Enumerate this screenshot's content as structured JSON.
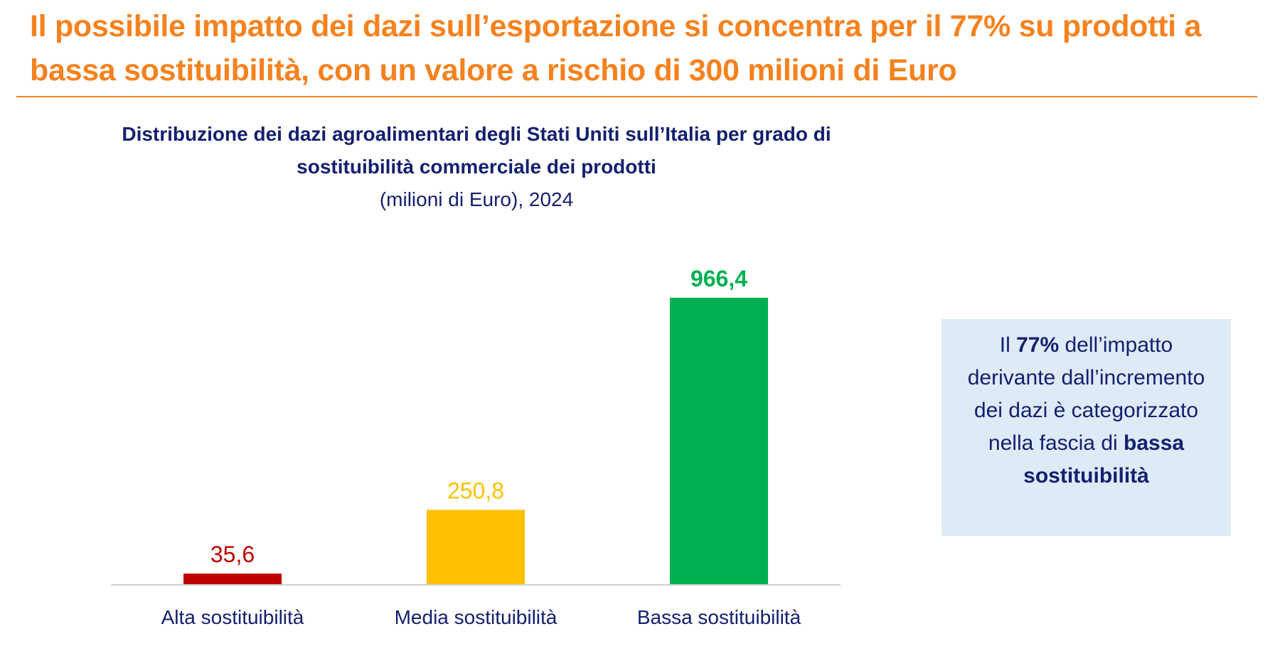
{
  "headline": "Il possibile impatto dei dazi sull’esportazione si concentra per il 77% su prodotti a bassa sostituibilità, con un valore a rischio di 300 milioni di Euro",
  "colors": {
    "headline": "#F5821F",
    "text": "#14206E",
    "box_bg": "#DDEBF7"
  },
  "chart_data": {
    "type": "bar",
    "title": "Distribuzione dei dazi agroalimentari degli Stati Uniti sull’Italia per grado di sostituibilità commerciale dei prodotti",
    "subtitle": "(milioni di Euro), 2024",
    "categories": [
      "Alta sostituibilità",
      "Media sostituibilità",
      "Bassa sostituibilità"
    ],
    "values": [
      35.6,
      250.8,
      966.4
    ],
    "data_labels": [
      "35,6",
      "250,8",
      "966,4"
    ],
    "bar_colors": [
      "#C00000",
      "#FFC000",
      "#00B050"
    ],
    "ylim": [
      0,
      1000
    ],
    "grid": false,
    "legend": "none"
  },
  "callout": {
    "t1": "Il ",
    "b1": "77%",
    "t2": " dell’impatto derivante dall’incremento dei dazi è categorizzato nella fascia di ",
    "b2": "bassa sostituibilità"
  }
}
